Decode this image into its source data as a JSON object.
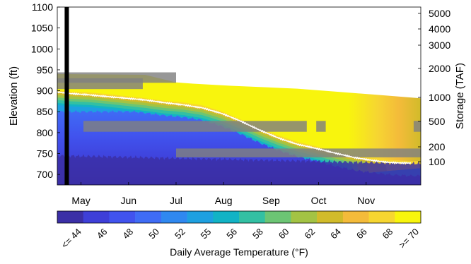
{
  "chart_data": [
    {
      "type": "heatmap",
      "ylabel": "Elevation (ft)",
      "y2label": "Storage (TAF)",
      "x_ticks": [
        "May",
        "Jun",
        "Jul",
        "Aug",
        "Sep",
        "Oct",
        "Nov"
      ],
      "y_ticks": [
        700,
        750,
        800,
        850,
        900,
        950,
        1000,
        1050,
        1100
      ],
      "y2_ticks": [
        5000,
        4000,
        3000,
        2000,
        1000,
        500,
        200,
        100
      ],
      "ylim": [
        675,
        1100
      ],
      "x_range_months": [
        4.55,
        12.2
      ],
      "storage_trace": {
        "x": [
          4.55,
          4.8,
          5.2,
          5.6,
          6.0,
          6.4,
          6.8,
          7.2,
          7.6,
          8.0,
          8.4,
          8.8,
          9.2,
          9.6,
          10.0,
          10.4,
          10.8,
          11.2,
          11.6,
          12.0
        ],
        "y": [
          896,
          893,
          891,
          887,
          882,
          877,
          871,
          867,
          860,
          846,
          827,
          806,
          788,
          773,
          762,
          750,
          740,
          734,
          729,
          727
        ]
      },
      "marker_line_x": 4.75,
      "gray_bands": [
        {
          "x0": 4.55,
          "x1": 7.05,
          "y0": 919,
          "y1": 944
        },
        {
          "x0": 4.55,
          "x1": 6.35,
          "y0": 904,
          "y1": 930
        },
        {
          "x0": 5.1,
          "x1": 9.8,
          "y0": 802,
          "y1": 828
        },
        {
          "x0": 7.05,
          "x1": 12.2,
          "y0": 741,
          "y1": 762
        },
        {
          "x0": 10.0,
          "x1": 10.2,
          "y0": 802,
          "y1": 828
        },
        {
          "x0": 12.05,
          "x1": 12.2,
          "y0": 802,
          "y1": 828
        }
      ],
      "colorbar": {
        "label": "Daily Average Temperature (°F)",
        "ticks": [
          "<= 44",
          "46",
          "48",
          "50",
          "52",
          "55",
          "56",
          "58",
          "60",
          "62",
          "64",
          "66",
          "68",
          ">= 70"
        ],
        "colors": [
          "#3b2fa6",
          "#3e3fd8",
          "#4153ee",
          "#3f6cf5",
          "#2f88f0",
          "#1ea0e0",
          "#12b3c5",
          "#33c0a3",
          "#6cc574",
          "#a3c344",
          "#d1bb2a",
          "#f4bb3a",
          "#f6d631",
          "#f8f50d"
        ]
      }
    }
  ]
}
